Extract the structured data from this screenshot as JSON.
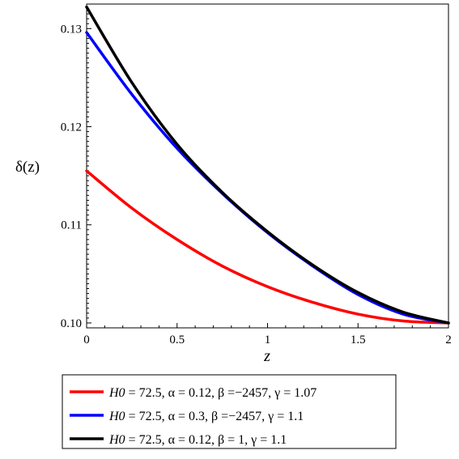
{
  "chart_data": {
    "type": "line",
    "xlabel": "z",
    "ylabel": "δ(z)",
    "xlim": [
      0,
      2
    ],
    "ylim": [
      0.0995,
      0.1325
    ],
    "xticks": [
      0,
      0.5,
      1,
      1.5,
      2
    ],
    "xtick_labels": [
      "0",
      "0.5",
      "1",
      "1.5",
      "2"
    ],
    "yticks": [
      0.1,
      0.11,
      0.12,
      0.13
    ],
    "ytick_labels": [
      "0.10",
      "0.11",
      "0.12",
      "0.13"
    ],
    "grid": false,
    "legend_position": "bottom",
    "series": [
      {
        "name": "H0 = 72.5, α = 0.12, β = −2457, γ = 1.07",
        "legend": {
          "param": "H0",
          "rest": " = 72.5, α = 0.12, β =−2457, γ = 1.07"
        },
        "color": "#ff0000",
        "x": [
          0,
          0.25,
          0.5,
          0.75,
          1.0,
          1.25,
          1.5,
          1.75,
          2.0
        ],
        "y": [
          0.1155,
          0.1117,
          0.1085,
          0.1058,
          0.1037,
          0.1021,
          0.1009,
          0.1002,
          0.1
        ]
      },
      {
        "name": "H0 = 72.5, α = 0.3, β = −2457, γ = 1.1",
        "legend": {
          "param": "H0",
          "rest": " = 72.5, α = 0.3, β =−2457, γ = 1.1"
        },
        "color": "#0000ff",
        "x": [
          0,
          0.25,
          0.5,
          0.75,
          1.0,
          1.25,
          1.5,
          1.75,
          2.0
        ],
        "y": [
          0.1296,
          0.1233,
          0.1178,
          0.1132,
          0.1092,
          0.1058,
          0.1029,
          0.1009,
          0.1
        ]
      },
      {
        "name": "H0 = 72.5, α = 0.12, β = 1, γ = 1.1",
        "legend": {
          "param": "H0",
          "rest": " = 72.5, α = 0.12, β = 1, γ = 1.1"
        },
        "color": "#000000",
        "x": [
          0,
          0.25,
          0.5,
          0.75,
          1.0,
          1.25,
          1.5,
          1.75,
          2.0
        ],
        "y": [
          0.1322,
          0.1245,
          0.1182,
          0.1133,
          0.1093,
          0.1059,
          0.1031,
          0.1011,
          0.1
        ]
      }
    ]
  }
}
